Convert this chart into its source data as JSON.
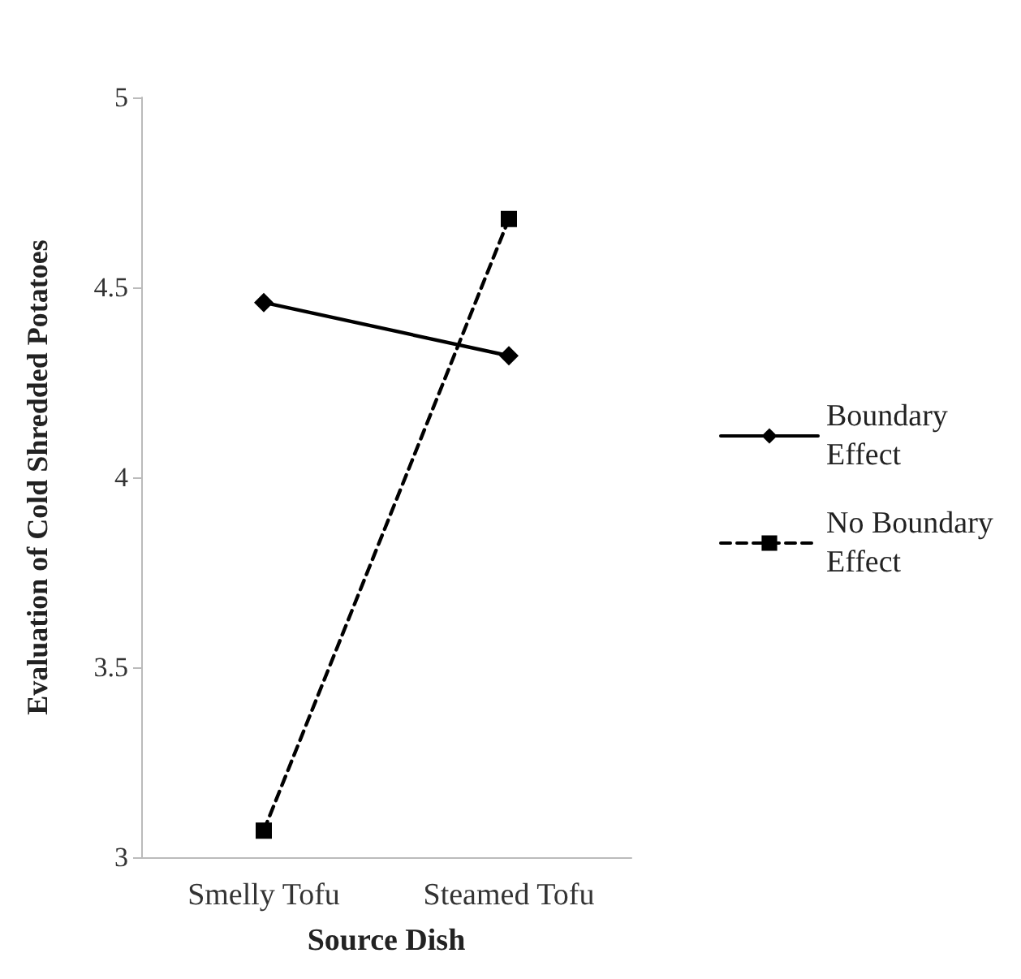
{
  "chart_data": {
    "type": "line",
    "xlabel": "Source Dish",
    "ylabel": "Evaluation of Cold Shredded Potatoes",
    "categories": [
      "Smelly Tofu",
      "Steamed Tofu"
    ],
    "series": [
      {
        "name": "Boundary Effect",
        "color": "#000000",
        "values": [
          4.46,
          4.32
        ],
        "marker": "diamond",
        "line_style": "solid"
      },
      {
        "name": "No Boundary Effect",
        "color": "#000000",
        "values": [
          3.07,
          4.68
        ],
        "marker": "square",
        "line_style": "dashed"
      }
    ],
    "ylim": [
      3,
      5
    ],
    "yticks": [
      3,
      3.5,
      4,
      4.5,
      5
    ],
    "grid": false,
    "legend": "right"
  }
}
